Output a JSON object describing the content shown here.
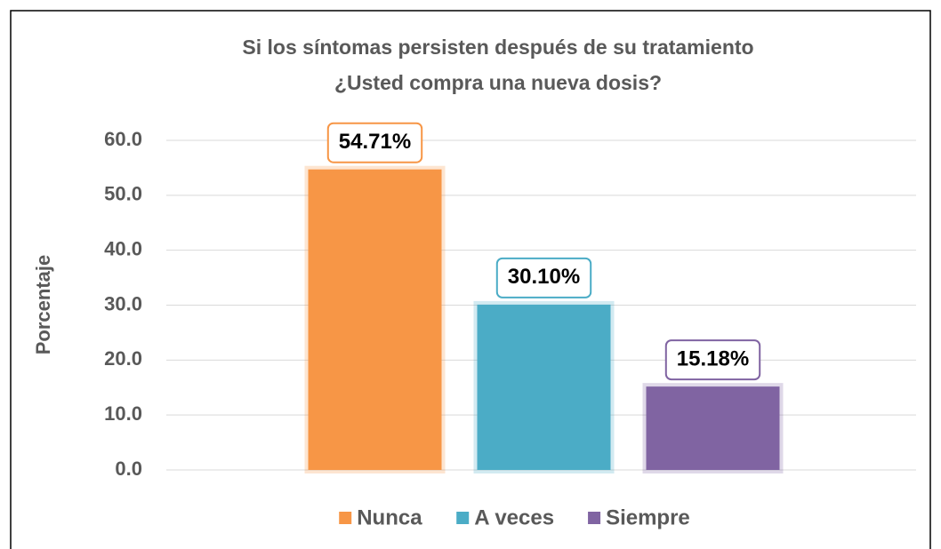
{
  "chart_data": {
    "type": "bar",
    "title": [
      "Si los síntomas persisten después de su tratamiento",
      "¿Usted compra una nueva dosis?"
    ],
    "y_label": "Porcentaje",
    "categories": [
      null
    ],
    "series": [
      {
        "name": "Nunca",
        "color": "#f79646",
        "values": [
          54.71
        ],
        "value_labels": [
          "54.71%"
        ]
      },
      {
        "name": "A veces",
        "color": "#4bacc6",
        "values": [
          30.1
        ],
        "value_labels": [
          "30.10%"
        ]
      },
      {
        "name": "Siempre",
        "color": "#8064a2",
        "values": [
          15.18
        ],
        "value_labels": [
          "15.18%"
        ]
      }
    ],
    "ylim": [
      0,
      60
    ],
    "yticks": [
      {
        "value": 0,
        "label": "0.0"
      },
      {
        "value": 10,
        "label": "10.0"
      },
      {
        "value": 20,
        "label": "20.0"
      },
      {
        "value": 30,
        "label": "30.0"
      },
      {
        "value": 40,
        "label": "40.0"
      },
      {
        "value": 50,
        "label": "50.0"
      },
      {
        "value": 60,
        "label": "60.0"
      }
    ],
    "grid": true,
    "legend": "bottom"
  }
}
